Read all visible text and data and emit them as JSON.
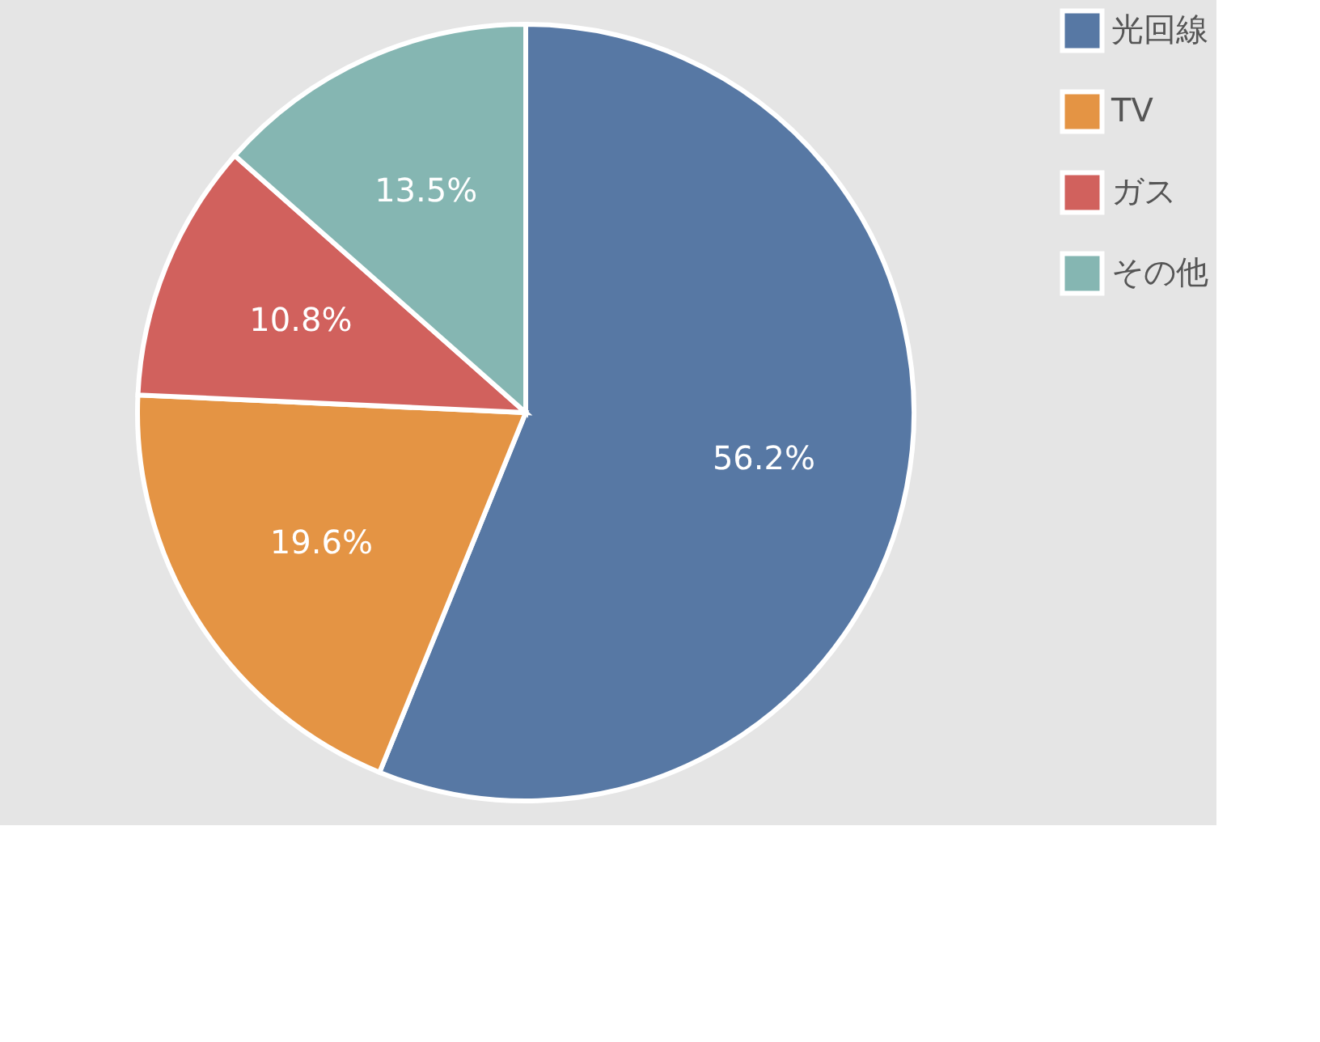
{
  "chart_data": {
    "type": "pie",
    "categories": [
      "光回線",
      "TV",
      "ガス",
      "その他"
    ],
    "values": [
      56.2,
      19.6,
      10.8,
      13.5
    ],
    "value_labels": [
      "56.2%",
      "19.6%",
      "10.8%",
      "13.5%"
    ],
    "colors": [
      "#5778a4",
      "#e49444",
      "#d1615d",
      "#85b6b2"
    ],
    "legend": "right"
  }
}
